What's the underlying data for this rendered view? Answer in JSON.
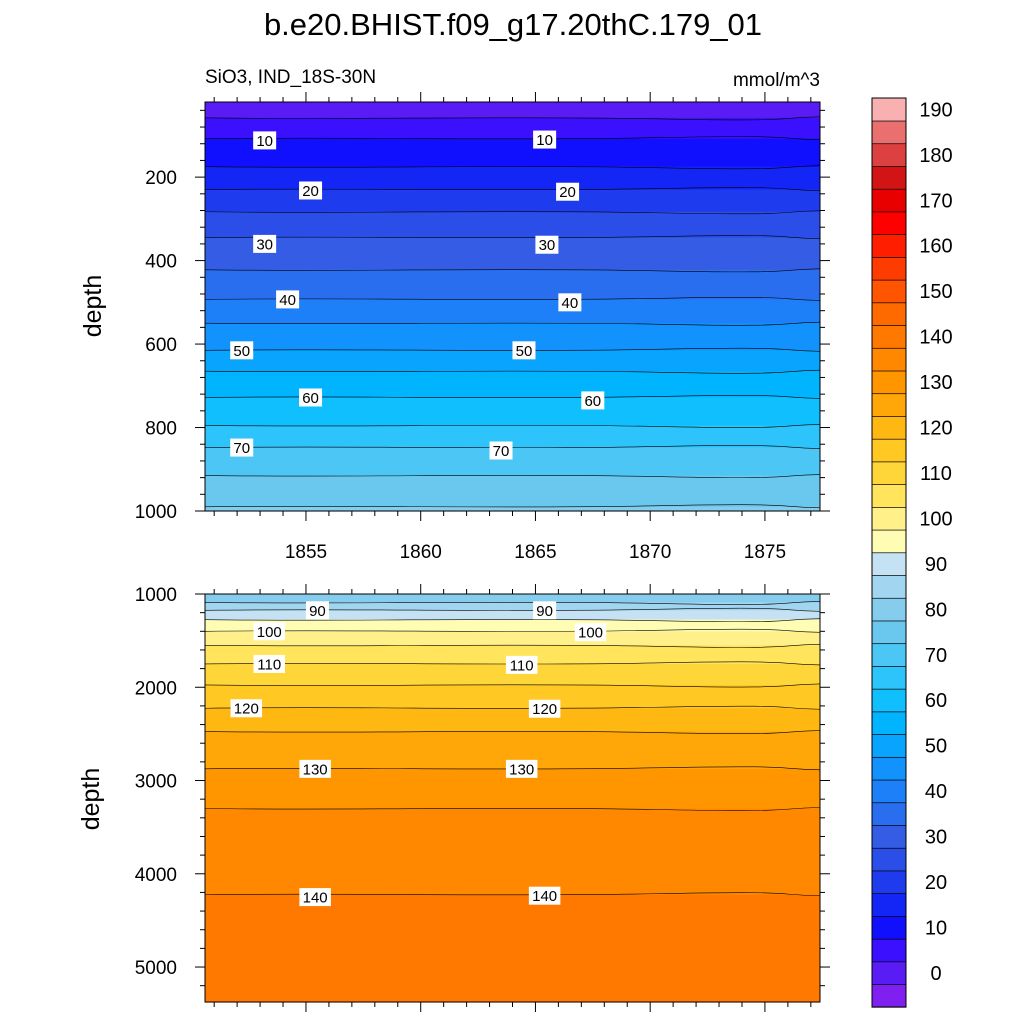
{
  "title": "b.e20.BHIST.f09_g17.20thC.179_01",
  "subtitle_left": "SiO3, IND_18S-30N",
  "subtitle_right": "mmol/m^3",
  "chart_data": [
    {
      "type": "contour",
      "panel": "upper",
      "xlabel": "",
      "ylabel": "depth",
      "xlim": [
        1850.6,
        1877.4
      ],
      "ylim": [
        1000,
        20
      ],
      "x_ticks": [
        1855,
        1860,
        1865,
        1870,
        1875
      ],
      "y_ticks": [
        200,
        400,
        600,
        800,
        1000
      ],
      "contour_interval": 5,
      "contour_lines": [
        {
          "level": 5,
          "depth": 58
        },
        {
          "level": 10,
          "depth": 108
        },
        {
          "level": 15,
          "depth": 175
        },
        {
          "level": 20,
          "depth": 230
        },
        {
          "level": 25,
          "depth": 283
        },
        {
          "level": 30,
          "depth": 345
        },
        {
          "level": 35,
          "depth": 422
        },
        {
          "level": 40,
          "depth": 493
        },
        {
          "level": 45,
          "depth": 550
        },
        {
          "level": 50,
          "depth": 615
        },
        {
          "level": 55,
          "depth": 665
        },
        {
          "level": 60,
          "depth": 728
        },
        {
          "level": 65,
          "depth": 795
        },
        {
          "level": 70,
          "depth": 848
        },
        {
          "level": 75,
          "depth": 915
        },
        {
          "level": 80,
          "depth": 990
        }
      ],
      "contour_labels": [
        {
          "text": "10",
          "x": 1853.2,
          "depth": 112
        },
        {
          "text": "10",
          "x": 1865.4,
          "depth": 110
        },
        {
          "text": "20",
          "x": 1855.2,
          "depth": 232
        },
        {
          "text": "20",
          "x": 1866.4,
          "depth": 235
        },
        {
          "text": "30",
          "x": 1853.2,
          "depth": 360
        },
        {
          "text": "30",
          "x": 1865.5,
          "depth": 362
        },
        {
          "text": "40",
          "x": 1854.2,
          "depth": 493
        },
        {
          "text": "40",
          "x": 1866.5,
          "depth": 500
        },
        {
          "text": "50",
          "x": 1852.2,
          "depth": 615
        },
        {
          "text": "50",
          "x": 1864.5,
          "depth": 615
        },
        {
          "text": "60",
          "x": 1855.2,
          "depth": 728
        },
        {
          "text": "60",
          "x": 1867.5,
          "depth": 735
        },
        {
          "text": "70",
          "x": 1852.2,
          "depth": 848
        },
        {
          "text": "70",
          "x": 1863.5,
          "depth": 855
        }
      ]
    },
    {
      "type": "contour",
      "panel": "lower",
      "xlabel": "",
      "ylabel": "depth",
      "xlim": [
        1850.6,
        1877.4
      ],
      "ylim": [
        5375,
        1000
      ],
      "x_ticks": [
        1855,
        1860,
        1865,
        1870,
        1875
      ],
      "y_ticks": [
        1000,
        2000,
        3000,
        4000,
        5000
      ],
      "contour_interval": 5,
      "contour_lines": [
        {
          "level": 85,
          "depth": 1090
        },
        {
          "level": 90,
          "depth": 1175
        },
        {
          "level": 95,
          "depth": 1275
        },
        {
          "level": 100,
          "depth": 1400
        },
        {
          "level": 105,
          "depth": 1550
        },
        {
          "level": 110,
          "depth": 1750
        },
        {
          "level": 115,
          "depth": 1975
        },
        {
          "level": 120,
          "depth": 2225
        },
        {
          "level": 125,
          "depth": 2475
        },
        {
          "level": 130,
          "depth": 2875
        },
        {
          "level": 135,
          "depth": 3300
        },
        {
          "level": 140,
          "depth": 4225
        }
      ],
      "contour_labels": [
        {
          "text": "90",
          "x": 1855.5,
          "depth": 1175
        },
        {
          "text": "90",
          "x": 1865.4,
          "depth": 1175
        },
        {
          "text": "100",
          "x": 1853.4,
          "depth": 1400
        },
        {
          "text": "100",
          "x": 1867.4,
          "depth": 1410
        },
        {
          "text": "110",
          "x": 1853.4,
          "depth": 1750
        },
        {
          "text": "110",
          "x": 1864.4,
          "depth": 1760
        },
        {
          "text": "120",
          "x": 1852.4,
          "depth": 2225
        },
        {
          "text": "120",
          "x": 1865.4,
          "depth": 2230
        },
        {
          "text": "130",
          "x": 1855.4,
          "depth": 2875
        },
        {
          "text": "130",
          "x": 1864.4,
          "depth": 2875
        },
        {
          "text": "140",
          "x": 1855.4,
          "depth": 4250
        },
        {
          "text": "140",
          "x": 1865.4,
          "depth": 4235
        }
      ]
    }
  ],
  "colorbar": {
    "placement": "right",
    "min": -5,
    "max": 195,
    "labels": [
      0,
      10,
      20,
      30,
      40,
      50,
      60,
      70,
      80,
      90,
      100,
      110,
      120,
      130,
      140,
      150,
      160,
      170,
      180,
      190
    ],
    "colors": [
      "#7f20f0",
      "#5a1cf5",
      "#3a10ff",
      "#1010ff",
      "#1426f6",
      "#1e3cee",
      "#2c4ee8",
      "#345ce4",
      "#2a6ef0",
      "#1e80f8",
      "#1192fc",
      "#08a4fd",
      "#00b4ff",
      "#10c0fe",
      "#2cc4fa",
      "#4cc6f4",
      "#6ac8ee",
      "#86ccec",
      "#a2d6f0",
      "#c4e2f4",
      "#fffcb4",
      "#fff08a",
      "#ffe45c",
      "#ffd63a",
      "#ffc823",
      "#ffb812",
      "#ffa608",
      "#ff9600",
      "#ff8800",
      "#ff7800",
      "#ff6a00",
      "#ff5400",
      "#ff3c00",
      "#ff1e00",
      "#ff0000",
      "#e80000",
      "#d21414",
      "#dc4040",
      "#ea7070",
      "#f9b0b0"
    ]
  }
}
